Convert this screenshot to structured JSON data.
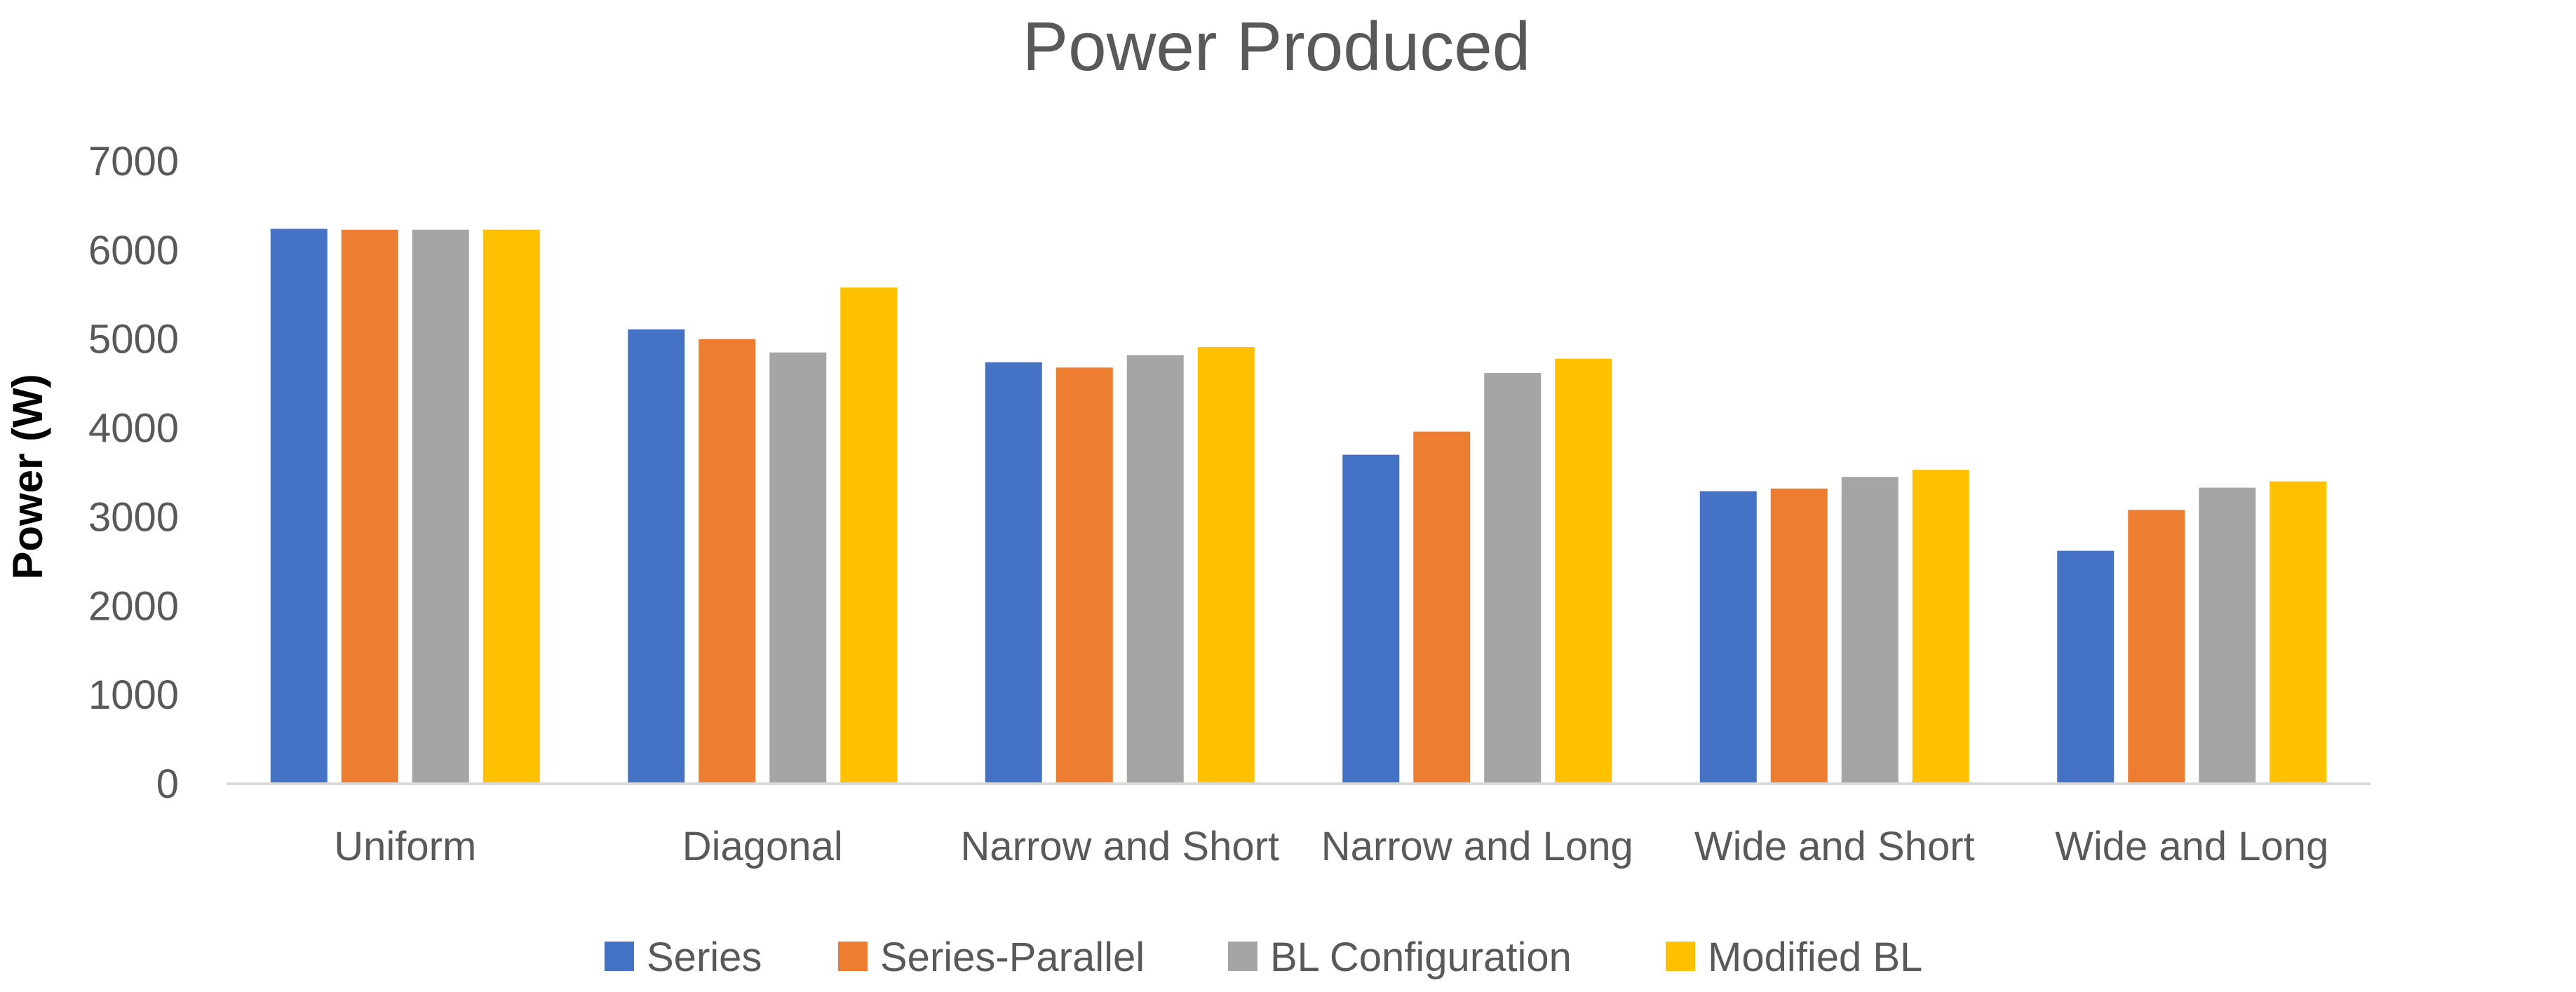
{
  "chart_data": {
    "type": "bar",
    "title": "Power Produced",
    "xlabel": "",
    "ylabel": "Power (W)",
    "ylim": [
      0,
      7000
    ],
    "yticks": [
      0,
      1000,
      2000,
      3000,
      4000,
      5000,
      6000,
      7000
    ],
    "grid": false,
    "legend_position": "bottom",
    "categories": [
      "Uniform",
      "Diagonal",
      "Narrow and Short",
      "Narrow and Long",
      "Wide and Short",
      "Wide and Long"
    ],
    "series": [
      {
        "name": "Series",
        "color": "#4472C4",
        "values": [
          6240,
          5110,
          4740,
          3700,
          3290,
          2620
        ]
      },
      {
        "name": "Series-Parallel",
        "color": "#ED7D31",
        "values": [
          6230,
          5000,
          4680,
          3960,
          3320,
          3080
        ]
      },
      {
        "name": "BL Configuration",
        "color": "#A5A5A5",
        "values": [
          6230,
          4850,
          4820,
          4620,
          3450,
          3330
        ]
      },
      {
        "name": "Modified BL",
        "color": "#FFC000",
        "values": [
          6230,
          5580,
          4910,
          4780,
          3530,
          3400
        ]
      }
    ],
    "axis_line_color": "#D9D9D9"
  }
}
